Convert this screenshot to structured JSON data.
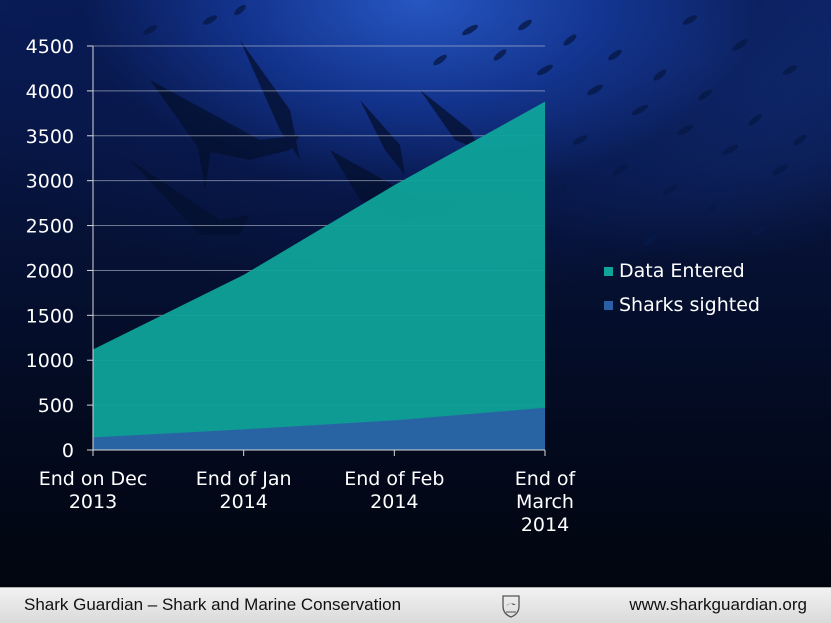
{
  "footer": {
    "left_text": "Shark Guardian – Shark and Marine Conservation",
    "right_text": "www.sharkguardian.org"
  },
  "colors": {
    "data_entered": "#0fa39a",
    "sharks_sighted": "#2a5fa6",
    "axis": "#d8d8d8",
    "text": "#ffffff"
  },
  "icons": {
    "footer_logo": "shark-guardian-logo-icon"
  },
  "chart_data": {
    "type": "area",
    "categories": [
      "End on Dec 2013",
      "End of Jan 2014",
      "End of Feb 2014",
      "End of March 2014"
    ],
    "category_lines": [
      [
        "End on Dec",
        "2013"
      ],
      [
        "End of Jan",
        "2014"
      ],
      [
        "End of Feb",
        "2014"
      ],
      [
        "End of",
        "March",
        "2014"
      ]
    ],
    "series": [
      {
        "name": "Data Entered",
        "values": [
          1120,
          1950,
          2950,
          3880
        ],
        "color": "#0fa39a"
      },
      {
        "name": "Sharks sighted",
        "values": [
          140,
          230,
          330,
          470
        ],
        "color": "#2a5fa6"
      }
    ],
    "stacked": false,
    "ylim": [
      0,
      4500
    ],
    "yticks": [
      0,
      500,
      1000,
      1500,
      2000,
      2500,
      3000,
      3500,
      4000,
      4500
    ],
    "grid": true,
    "legend_position": "right"
  }
}
